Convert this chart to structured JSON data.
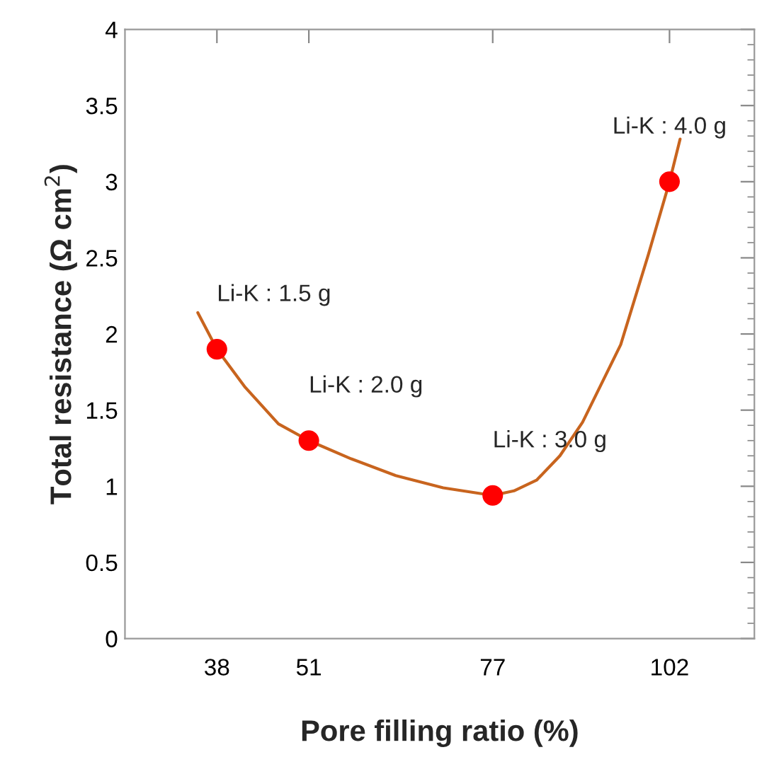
{
  "chart_data": {
    "type": "line",
    "xlabel": "Pore filling ratio (%)",
    "ylabel": "Total resistance (Ω cm$^{2}$)",
    "xlim": [
      25,
      114
    ],
    "xticks": [
      38,
      51,
      77,
      102
    ],
    "ylim": [
      0,
      4
    ],
    "yticks": [
      0,
      0.5,
      1,
      1.5,
      2,
      2.5,
      3,
      3.5,
      4
    ],
    "grid": false,
    "series": [
      {
        "color": "#c8641e",
        "marker": "none",
        "line_style": "solid",
        "x": [
          35.3,
          38,
          42,
          46.7,
          51,
          57,
          63.3,
          70,
          77,
          80,
          83.2,
          86.5,
          89.7,
          95.1,
          99.0,
          102,
          103.5
        ],
        "values": [
          2.14,
          1.9,
          1.65,
          1.41,
          1.3,
          1.18,
          1.07,
          0.99,
          0.94,
          0.97,
          1.04,
          1.2,
          1.42,
          1.93,
          2.52,
          3.0,
          3.28
        ]
      },
      {
        "type": "scatter",
        "color": "#ff0000",
        "marker": "circle",
        "x": [
          38,
          51,
          77,
          102
        ],
        "values": [
          1.9,
          1.3,
          0.94,
          3.0
        ]
      }
    ],
    "annotations": [
      {
        "text": "Li-K : 1.5 g",
        "x": 38,
        "y": 1.9
      },
      {
        "text": "Li-K : 2.0 g",
        "x": 51,
        "y": 1.3
      },
      {
        "text": "Li-K : 3.0 g",
        "x": 77,
        "y": 0.94
      },
      {
        "text": "Li-K : 4.0 g",
        "x": 102,
        "y": 3.0
      }
    ]
  }
}
